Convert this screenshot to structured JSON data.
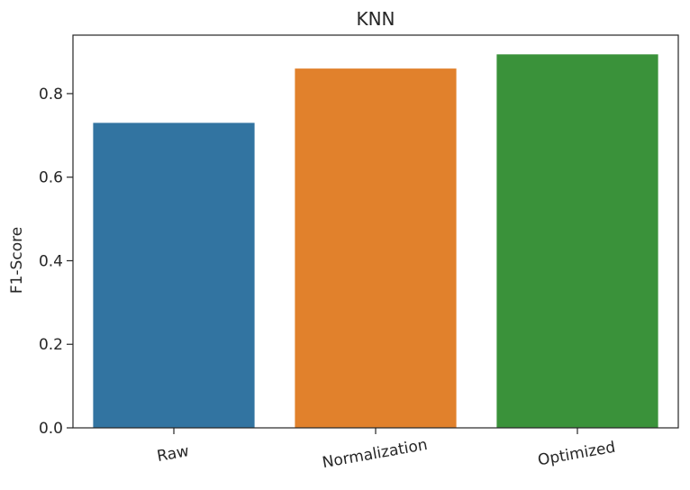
{
  "chart_data": {
    "type": "bar",
    "title": "KNN",
    "xlabel": "",
    "ylabel": "F1-Score",
    "categories": [
      "Raw",
      "Normalization",
      "Optimized"
    ],
    "values": [
      0.73,
      0.86,
      0.894
    ],
    "colors": [
      "#3274a1",
      "#e1812c",
      "#3a923a"
    ],
    "ylim": [
      0,
      0.94
    ],
    "yticks": [
      0.0,
      0.2,
      0.4,
      0.6,
      0.8
    ],
    "ytick_labels": [
      "0.0",
      "0.2",
      "0.4",
      "0.6",
      "0.8"
    ],
    "grid": false,
    "xtick_rotation_deg": -10
  }
}
